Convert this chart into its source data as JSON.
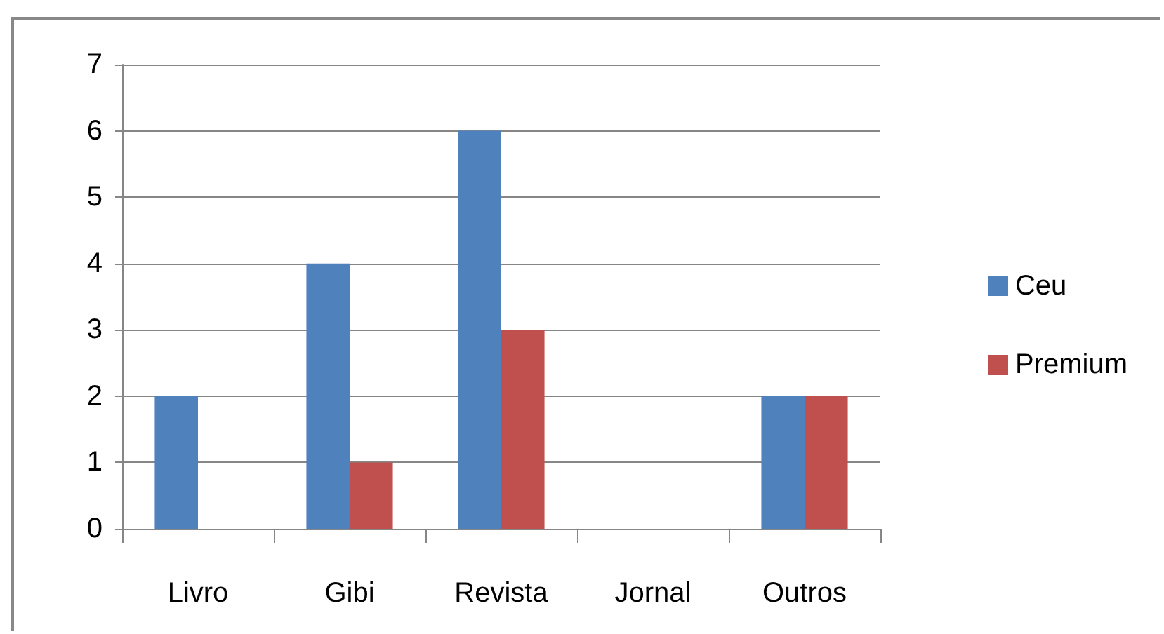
{
  "chart_data": {
    "type": "bar",
    "categories": [
      "Livro",
      "Gibi",
      "Revista",
      "Jornal",
      "Outros"
    ],
    "series": [
      {
        "name": "Ceu",
        "color": "#4f81bd",
        "values": [
          2,
          4,
          6,
          0,
          2
        ]
      },
      {
        "name": "Premium",
        "color": "#c0504d",
        "values": [
          0,
          1,
          3,
          0,
          2
        ]
      }
    ],
    "ylim": [
      0,
      7
    ],
    "yticks": [
      0,
      1,
      2,
      3,
      4,
      5,
      6,
      7
    ],
    "grid": "y",
    "legend": "right"
  }
}
